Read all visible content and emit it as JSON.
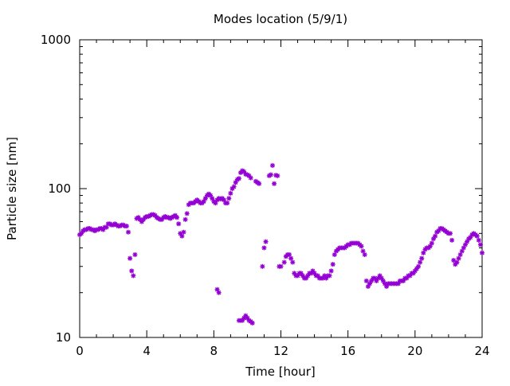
{
  "chart_data": {
    "type": "scatter",
    "title": "Modes location (5/9/1)",
    "xlabel": "Time [hour]",
    "ylabel": "Particle size [nm]",
    "xlim": [
      0,
      24
    ],
    "ylim": [
      10,
      1000
    ],
    "yscale": "log",
    "xticks": [
      0,
      4,
      8,
      12,
      16,
      20,
      24
    ],
    "yticks": [
      10,
      100,
      1000
    ],
    "xtick_labels": [
      "0",
      "4",
      "8",
      "12",
      "16",
      "20",
      "24"
    ],
    "ytick_labels": [
      "10",
      "100",
      "1000"
    ],
    "grid": false,
    "legend": false,
    "marker": "asterisk",
    "color": "#9400d3",
    "series": [
      {
        "values": [
          [
            0.0,
            49
          ],
          [
            0.1,
            50
          ],
          [
            0.2,
            52
          ],
          [
            0.3,
            53
          ],
          [
            0.4,
            53
          ],
          [
            0.5,
            54
          ],
          [
            0.6,
            54
          ],
          [
            0.7,
            53
          ],
          [
            0.8,
            53
          ],
          [
            0.9,
            52
          ],
          [
            1.0,
            53
          ],
          [
            1.1,
            53
          ],
          [
            1.2,
            54
          ],
          [
            1.3,
            54
          ],
          [
            1.4,
            53
          ],
          [
            1.5,
            55
          ],
          [
            1.6,
            55
          ],
          [
            1.7,
            58
          ],
          [
            1.8,
            58
          ],
          [
            1.9,
            57
          ],
          [
            2.0,
            57
          ],
          [
            2.1,
            58
          ],
          [
            2.2,
            57
          ],
          [
            2.3,
            56
          ],
          [
            2.4,
            56
          ],
          [
            2.5,
            57
          ],
          [
            2.6,
            57
          ],
          [
            2.7,
            56
          ],
          [
            2.8,
            56
          ],
          [
            2.9,
            51
          ],
          [
            3.0,
            34
          ],
          [
            3.1,
            28
          ],
          [
            3.2,
            26
          ],
          [
            3.3,
            36
          ],
          [
            3.4,
            63
          ],
          [
            3.5,
            64
          ],
          [
            3.6,
            62
          ],
          [
            3.7,
            60
          ],
          [
            3.8,
            62
          ],
          [
            3.9,
            64
          ],
          [
            4.0,
            65
          ],
          [
            4.1,
            65
          ],
          [
            4.2,
            66
          ],
          [
            4.3,
            67
          ],
          [
            4.4,
            67
          ],
          [
            4.5,
            66
          ],
          [
            4.6,
            64
          ],
          [
            4.7,
            63
          ],
          [
            4.8,
            62
          ],
          [
            4.9,
            62
          ],
          [
            5.0,
            64
          ],
          [
            5.1,
            65
          ],
          [
            5.2,
            64
          ],
          [
            5.3,
            64
          ],
          [
            5.4,
            63
          ],
          [
            5.5,
            64
          ],
          [
            5.6,
            65
          ],
          [
            5.7,
            66
          ],
          [
            5.8,
            64
          ],
          [
            5.9,
            58
          ],
          [
            6.0,
            50
          ],
          [
            6.1,
            48
          ],
          [
            6.2,
            51
          ],
          [
            6.3,
            62
          ],
          [
            6.4,
            68
          ],
          [
            6.5,
            78
          ],
          [
            6.6,
            80
          ],
          [
            6.7,
            80
          ],
          [
            6.8,
            80
          ],
          [
            6.9,
            82
          ],
          [
            7.0,
            84
          ],
          [
            7.1,
            82
          ],
          [
            7.2,
            80
          ],
          [
            7.3,
            80
          ],
          [
            7.4,
            82
          ],
          [
            7.5,
            86
          ],
          [
            7.6,
            90
          ],
          [
            7.7,
            92
          ],
          [
            7.8,
            90
          ],
          [
            7.9,
            86
          ],
          [
            8.0,
            82
          ],
          [
            8.1,
            80
          ],
          [
            8.2,
            84
          ],
          [
            8.3,
            86
          ],
          [
            8.4,
            85
          ],
          [
            8.5,
            86
          ],
          [
            8.6,
            84
          ],
          [
            8.7,
            80
          ],
          [
            8.8,
            80
          ],
          [
            8.9,
            86
          ],
          [
            9.0,
            93
          ],
          [
            9.1,
            100
          ],
          [
            9.2,
            103
          ],
          [
            9.3,
            110
          ],
          [
            9.4,
            115
          ],
          [
            9.5,
            117
          ],
          [
            9.6,
            128
          ],
          [
            9.7,
            132
          ],
          [
            9.8,
            130
          ],
          [
            9.9,
            125
          ],
          [
            10.0,
            124
          ],
          [
            10.1,
            122
          ],
          [
            10.2,
            118
          ],
          [
            10.5,
            112
          ],
          [
            10.6,
            110
          ],
          [
            10.7,
            108
          ],
          [
            8.2,
            21
          ],
          [
            8.3,
            20
          ],
          [
            9.5,
            13
          ],
          [
            9.6,
            13
          ],
          [
            9.7,
            13
          ],
          [
            9.8,
            13.5
          ],
          [
            9.9,
            14
          ],
          [
            10.0,
            13.5
          ],
          [
            10.1,
            13
          ],
          [
            10.2,
            12.8
          ],
          [
            10.3,
            12.5
          ],
          [
            10.9,
            30
          ],
          [
            11.0,
            40
          ],
          [
            11.1,
            44
          ],
          [
            11.3,
            122
          ],
          [
            11.4,
            124
          ],
          [
            11.5,
            143
          ],
          [
            11.6,
            108
          ],
          [
            11.7,
            123
          ],
          [
            11.8,
            122
          ],
          [
            11.9,
            30
          ],
          [
            12.0,
            30
          ],
          [
            12.2,
            32
          ],
          [
            12.3,
            35
          ],
          [
            12.4,
            36
          ],
          [
            12.5,
            36
          ],
          [
            12.6,
            34
          ],
          [
            12.7,
            32
          ],
          [
            12.8,
            27
          ],
          [
            12.9,
            26
          ],
          [
            13.0,
            26
          ],
          [
            13.1,
            27
          ],
          [
            13.2,
            27
          ],
          [
            13.3,
            26
          ],
          [
            13.4,
            25
          ],
          [
            13.5,
            25
          ],
          [
            13.6,
            26
          ],
          [
            13.7,
            27
          ],
          [
            13.8,
            27
          ],
          [
            13.9,
            28
          ],
          [
            14.0,
            27
          ],
          [
            14.1,
            26
          ],
          [
            14.2,
            26
          ],
          [
            14.3,
            25
          ],
          [
            14.4,
            25
          ],
          [
            14.5,
            25
          ],
          [
            14.6,
            26
          ],
          [
            14.7,
            25
          ],
          [
            14.8,
            26
          ],
          [
            14.9,
            26
          ],
          [
            15.0,
            28
          ],
          [
            15.1,
            31
          ],
          [
            15.2,
            36
          ],
          [
            15.3,
            38
          ],
          [
            15.4,
            39
          ],
          [
            15.5,
            40
          ],
          [
            15.6,
            40
          ],
          [
            15.7,
            40
          ],
          [
            15.8,
            40
          ],
          [
            15.9,
            41
          ],
          [
            16.0,
            42
          ],
          [
            16.1,
            42
          ],
          [
            16.2,
            43
          ],
          [
            16.3,
            43
          ],
          [
            16.4,
            43
          ],
          [
            16.5,
            43
          ],
          [
            16.6,
            43
          ],
          [
            16.7,
            42
          ],
          [
            16.8,
            41
          ],
          [
            16.9,
            38
          ],
          [
            17.0,
            36
          ],
          [
            17.1,
            24
          ],
          [
            17.2,
            22
          ],
          [
            17.3,
            23
          ],
          [
            17.4,
            24
          ],
          [
            17.5,
            25
          ],
          [
            17.6,
            25
          ],
          [
            17.7,
            24
          ],
          [
            17.8,
            25
          ],
          [
            17.9,
            26
          ],
          [
            18.0,
            25
          ],
          [
            18.1,
            24
          ],
          [
            18.2,
            23
          ],
          [
            18.3,
            22
          ],
          [
            18.4,
            23
          ],
          [
            18.5,
            23
          ],
          [
            18.6,
            23
          ],
          [
            18.7,
            23
          ],
          [
            18.8,
            23
          ],
          [
            18.9,
            23
          ],
          [
            19.0,
            23
          ],
          [
            19.1,
            24
          ],
          [
            19.2,
            24
          ],
          [
            19.3,
            24
          ],
          [
            19.4,
            25
          ],
          [
            19.5,
            25
          ],
          [
            19.6,
            26
          ],
          [
            19.7,
            26
          ],
          [
            19.8,
            27
          ],
          [
            19.9,
            27
          ],
          [
            20.0,
            28
          ],
          [
            20.1,
            29
          ],
          [
            20.2,
            30
          ],
          [
            20.3,
            32
          ],
          [
            20.4,
            34
          ],
          [
            20.5,
            37
          ],
          [
            20.6,
            39
          ],
          [
            20.7,
            40
          ],
          [
            20.8,
            40
          ],
          [
            20.9,
            41
          ],
          [
            21.0,
            43
          ],
          [
            21.1,
            46
          ],
          [
            21.2,
            48
          ],
          [
            21.3,
            51
          ],
          [
            21.4,
            52
          ],
          [
            21.5,
            54
          ],
          [
            21.6,
            54
          ],
          [
            21.7,
            53
          ],
          [
            21.8,
            52
          ],
          [
            21.9,
            51
          ],
          [
            22.0,
            50
          ],
          [
            22.1,
            50
          ],
          [
            22.2,
            45
          ],
          [
            22.3,
            33
          ],
          [
            22.4,
            31
          ],
          [
            22.5,
            32
          ],
          [
            22.6,
            34
          ],
          [
            22.7,
            36
          ],
          [
            22.8,
            38
          ],
          [
            22.9,
            40
          ],
          [
            23.0,
            42
          ],
          [
            23.1,
            44
          ],
          [
            23.2,
            46
          ],
          [
            23.3,
            47
          ],
          [
            23.4,
            49
          ],
          [
            23.5,
            50
          ],
          [
            23.6,
            49
          ],
          [
            23.7,
            48
          ],
          [
            23.8,
            45
          ],
          [
            23.9,
            42
          ],
          [
            24.0,
            37
          ]
        ]
      }
    ]
  }
}
